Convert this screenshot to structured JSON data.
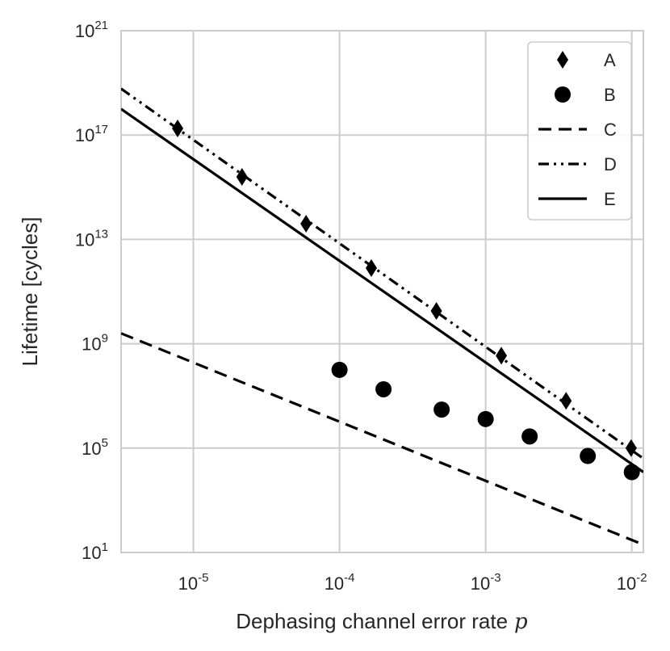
{
  "chart_data": {
    "type": "line",
    "xlabel": "Dephasing channel error rate",
    "xlabel_math": "p",
    "ylabel": "Lifetime [cycles]",
    "x_scale": "log",
    "y_scale": "log",
    "xlim": [
      3.2e-06,
      0.012
    ],
    "ylim": [
      10,
      1e+21
    ],
    "x_ticks": [
      {
        "value": 1e-05,
        "base": "10",
        "exp": "-5"
      },
      {
        "value": 0.0001,
        "base": "10",
        "exp": "-4"
      },
      {
        "value": 0.001,
        "base": "10",
        "exp": "-3"
      },
      {
        "value": 0.01,
        "base": "10",
        "exp": "-2"
      }
    ],
    "y_ticks": [
      {
        "value": 10.0,
        "base": "10",
        "exp": "1"
      },
      {
        "value": 100000.0,
        "base": "10",
        "exp": "5"
      },
      {
        "value": 1000000000.0,
        "base": "10",
        "exp": "9"
      },
      {
        "value": 10000000000000.0,
        "base": "10",
        "exp": "13"
      },
      {
        "value": 1e+17,
        "base": "10",
        "exp": "17"
      },
      {
        "value": 1e+21,
        "base": "10",
        "exp": "21"
      }
    ],
    "grid": true,
    "legend_position": "top-right",
    "series": [
      {
        "name": "A",
        "kind": "marker",
        "marker": "diamond",
        "x": [
          7.8e-06,
          2.15e-05,
          5.9e-05,
          0.000165,
          0.00046,
          0.00128,
          0.00355,
          0.0099
        ],
        "y": [
          1.8e+17,
          2500000000000000.0,
          40000000000000.0,
          800000000000.0,
          18000000000.0,
          350000000.0,
          6500000.0,
          100000.0
        ]
      },
      {
        "name": "B",
        "kind": "marker",
        "marker": "circle",
        "x": [
          0.0001,
          0.0002,
          0.0005,
          0.001,
          0.002,
          0.005,
          0.01
        ],
        "y": [
          100000000.0,
          18000000.0,
          3000000.0,
          1300000.0,
          280000.0,
          50000.0,
          12000.0
        ]
      },
      {
        "name": "C",
        "kind": "line",
        "dash": "dashed",
        "x": [
          3.2e-06,
          0.012
        ],
        "y": [
          2500000000.0,
          20
        ]
      },
      {
        "name": "D",
        "kind": "line",
        "dash": "dash-dot-dot",
        "x": [
          3.2e-06,
          0.012
        ],
        "y": [
          6e+18,
          40000.0
        ]
      },
      {
        "name": "E",
        "kind": "line",
        "dash": "solid",
        "x": [
          3.2e-06,
          0.012
        ],
        "y": [
          1e+18,
          12000.0
        ]
      }
    ],
    "colors": {
      "series": "#000000",
      "grid": "#cccccc",
      "axes_edge": "#cccccc",
      "text": "#262626",
      "background": "#ffffff",
      "legend_edge": "#cccccc"
    }
  }
}
